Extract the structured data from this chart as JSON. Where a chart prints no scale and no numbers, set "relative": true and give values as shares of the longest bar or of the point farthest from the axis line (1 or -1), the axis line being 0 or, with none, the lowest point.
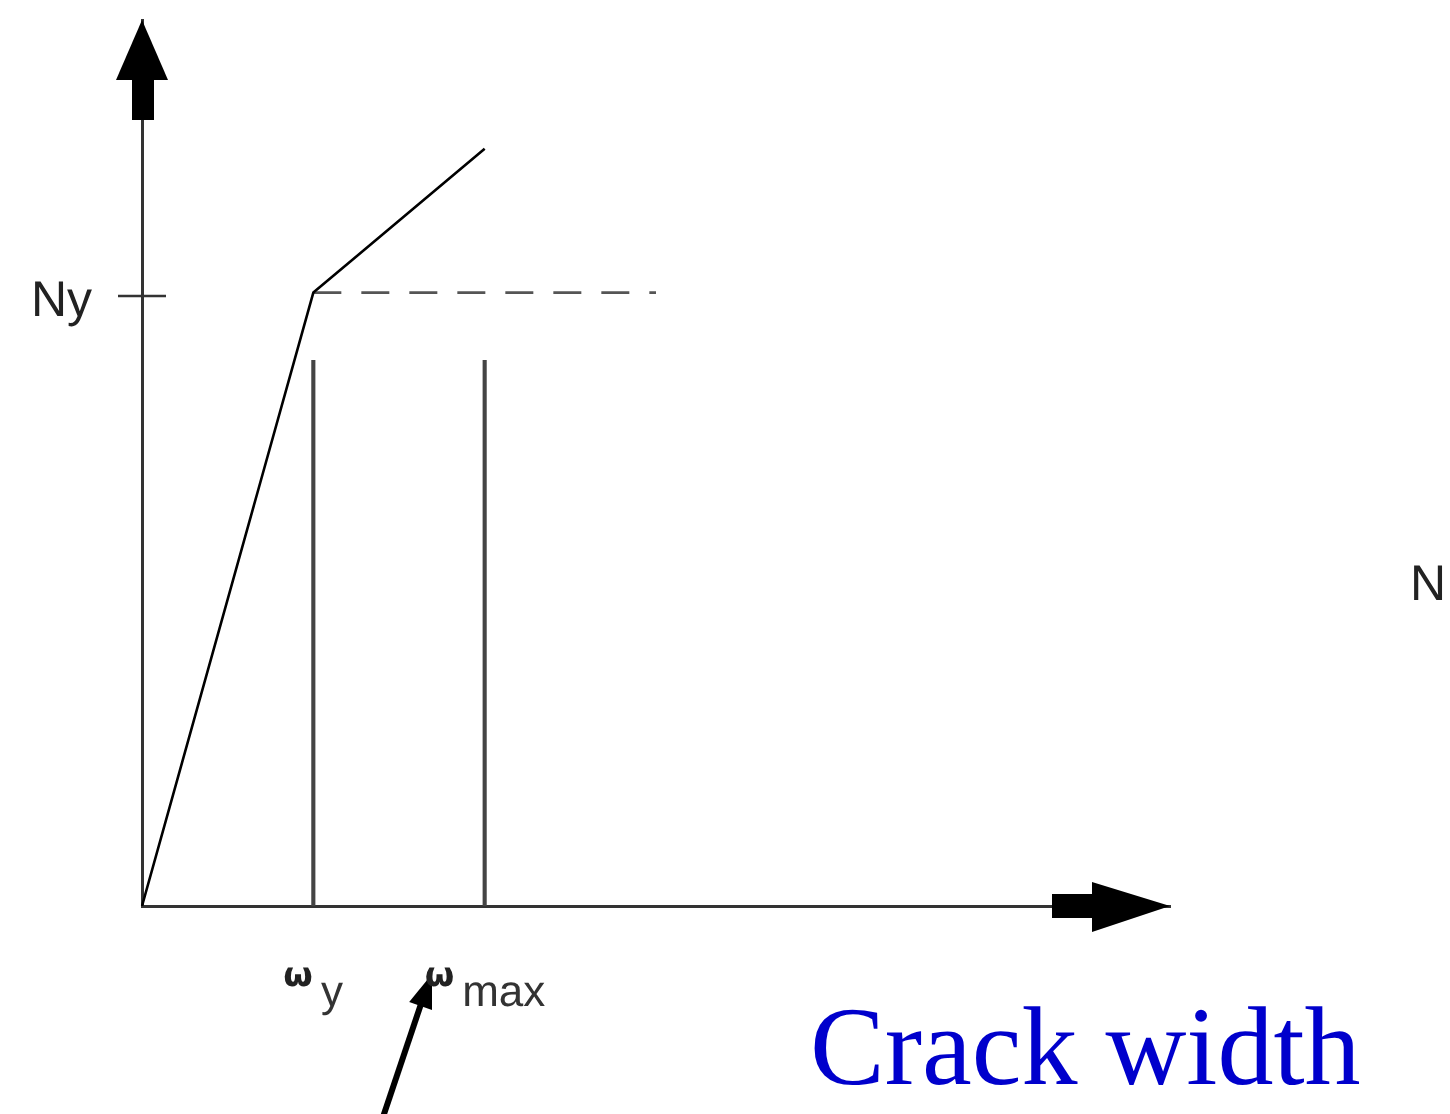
{
  "chart_data": {
    "type": "line",
    "relative": true,
    "xlabel": "Crack width",
    "categories": [
      null,
      "ω$_{y}$",
      "ω$_{max}$",
      null,
      null,
      null,
      null
    ],
    "series": [
      {
        "color": "#000000",
        "values": [
          0,
          0.81,
          1,
          null,
          null,
          null,
          null
        ]
      },
      {
        "color": "#555555",
        "line_style": "dashed",
        "values": [
          null,
          0.81,
          0.81,
          0.81,
          null,
          null,
          null
        ]
      },
      {
        "type": "bar",
        "color": "#444444",
        "values": [
          null,
          0.72,
          0.72,
          null,
          null,
          null,
          null
        ]
      }
    ],
    "annotations": [
      "Ny",
      "N"
    ]
  }
}
